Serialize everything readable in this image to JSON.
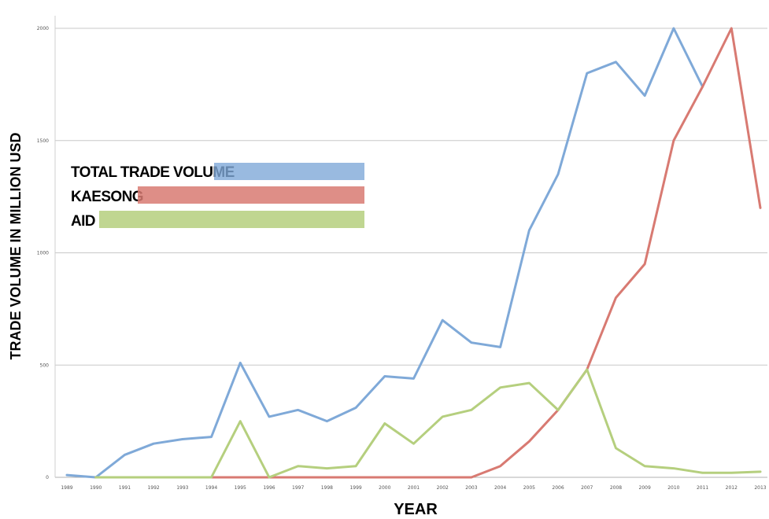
{
  "chart_data": {
    "type": "line",
    "title": "",
    "xlabel": "YEAR",
    "ylabel": "TRADE VOLUME IN MILLION USD",
    "ylim": [
      0,
      2000
    ],
    "y_ticks": [
      "0",
      "500",
      "1000",
      "1500",
      "2000"
    ],
    "grid": true,
    "legend_position": "left",
    "categories": [
      "1989",
      "1990",
      "1991",
      "1992",
      "1993",
      "1994",
      "1995",
      "1996",
      "1997",
      "1998",
      "1999",
      "2000",
      "2001",
      "2002",
      "2003",
      "2004",
      "2005",
      "2006",
      "2007",
      "2008",
      "2009",
      "2010",
      "2011",
      "2012",
      "2013"
    ],
    "series": [
      {
        "name": "TOTAL TRADE VOLUME",
        "color": "#7fa9d8",
        "values": [
          10,
          0,
          100,
          150,
          170,
          180,
          510,
          270,
          300,
          250,
          310,
          450,
          440,
          700,
          600,
          580,
          1100,
          1350,
          1800,
          1850,
          1700,
          2000,
          1740,
          null,
          null
        ]
      },
      {
        "name": "KAESONG",
        "color": "#d87a72",
        "values": [
          null,
          0,
          0,
          0,
          0,
          0,
          0,
          0,
          0,
          0,
          0,
          0,
          0,
          0,
          0,
          50,
          160,
          300,
          480,
          800,
          950,
          1500,
          1740,
          2000,
          1200
        ]
      },
      {
        "name": "AID",
        "color": "#b5cf7e",
        "values": [
          null,
          0,
          0,
          0,
          0,
          0,
          250,
          0,
          50,
          40,
          50,
          240,
          150,
          270,
          300,
          400,
          420,
          300,
          480,
          130,
          50,
          40,
          20,
          20,
          25
        ]
      }
    ]
  }
}
